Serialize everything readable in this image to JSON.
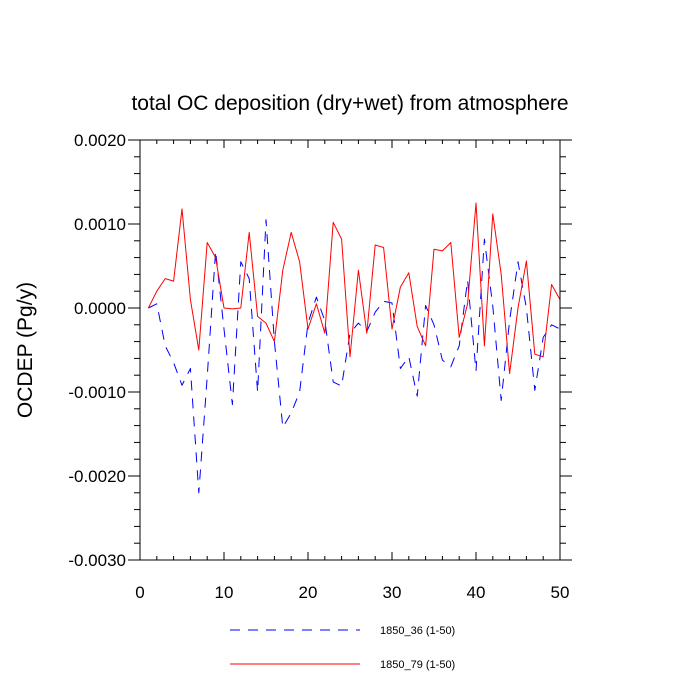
{
  "chart_data": {
    "type": "line",
    "title": "total OC deposition (dry+wet) from atmosphere",
    "xlabel": "",
    "ylabel": "OCDEP  (Pg/y)",
    "xlim": [
      0,
      50
    ],
    "ylim": [
      -0.003,
      0.002
    ],
    "xticks": [
      0,
      10,
      20,
      30,
      40,
      50
    ],
    "xtick_labels": [
      "0",
      "10",
      "20",
      "30",
      "40",
      "50"
    ],
    "yticks": [
      0.002,
      0.001,
      0.0,
      -0.001,
      -0.002,
      -0.003
    ],
    "ytick_labels": [
      "0.0020",
      "0.0010",
      "0.0000",
      "-0.0010",
      "-0.0020",
      "-0.0030"
    ],
    "x": [
      1,
      2,
      3,
      4,
      5,
      6,
      7,
      8,
      9,
      10,
      11,
      12,
      13,
      14,
      15,
      16,
      17,
      18,
      19,
      20,
      21,
      22,
      23,
      24,
      25,
      26,
      27,
      28,
      29,
      30,
      31,
      32,
      33,
      34,
      35,
      36,
      37,
      38,
      39,
      40,
      41,
      42,
      43,
      44,
      45,
      46,
      47,
      48,
      49,
      50
    ],
    "series": [
      {
        "name": "1850_36 (1-50)",
        "color": "#0000ff",
        "style": "dashed",
        "values": [
          0.0,
          5e-05,
          -0.00045,
          -0.00065,
          -0.00092,
          -0.00072,
          -0.0022,
          -0.00082,
          0.00068,
          -0.00025,
          -0.00115,
          0.00055,
          0.00035,
          -0.001,
          0.00105,
          -0.0004,
          -0.00142,
          -0.00125,
          -0.001,
          -0.00018,
          0.00013,
          -0.00015,
          -0.00088,
          -0.00093,
          -0.0003,
          -0.00018,
          -0.00028,
          -5e-05,
          8e-05,
          6e-05,
          -0.00072,
          -0.00058,
          -0.00105,
          3e-05,
          -0.0002,
          -0.00062,
          -0.0007,
          -0.00045,
          0.00033,
          -0.00075,
          0.00082,
          2e-05,
          -0.0011,
          -0.00015,
          0.00055,
          0.0,
          -0.00098,
          -0.00035,
          -0.0002,
          -0.00025
        ]
      },
      {
        "name": "1850_79 (1-50)",
        "color": "#ff0000",
        "style": "solid",
        "values": [
          0.0,
          0.0002,
          0.00035,
          0.00032,
          0.00118,
          0.0001,
          -0.0005,
          0.00078,
          0.0006,
          0.0,
          -1e-05,
          0.0,
          0.0009,
          -0.0001,
          -0.00018,
          -0.0004,
          0.00045,
          0.0009,
          0.00055,
          -0.00025,
          5e-05,
          -0.0003,
          0.00102,
          0.00082,
          -0.00058,
          0.00045,
          -0.0003,
          0.00075,
          0.00072,
          -0.00025,
          0.00025,
          0.00042,
          -0.00022,
          -0.00045,
          0.0007,
          0.00068,
          0.00078,
          -0.00035,
          5e-05,
          0.00125,
          -0.00045,
          0.00112,
          0.0004,
          -0.00078,
          0.0,
          0.00056,
          -0.00055,
          -0.00058,
          0.00028,
          0.0001
        ]
      }
    ],
    "legend_position": "bottom-center"
  }
}
